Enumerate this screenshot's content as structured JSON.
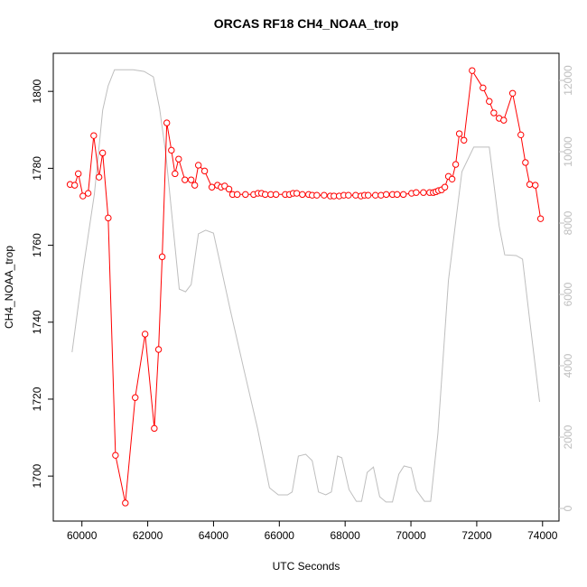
{
  "chart_data": {
    "type": "line",
    "title": "ORCAS RF18 CH4_NOAA_trop",
    "x_label": "UTC Seconds",
    "y_label": "CH4_NOAA_trop",
    "xlim": [
      59130,
      74500
    ],
    "ylim": [
      1688.3,
      1809.9
    ],
    "y2lim": [
      -354,
      12760
    ],
    "xticks": [
      60000,
      62000,
      64000,
      66000,
      68000,
      70000,
      72000,
      74000
    ],
    "yticks": [
      1700,
      1720,
      1740,
      1760,
      1780,
      1800
    ],
    "y2ticks": [
      0,
      2000,
      4000,
      6000,
      8000,
      10000,
      12000
    ],
    "y2_color": "#bebebe",
    "series": [
      {
        "color": "#ff0000",
        "markers": true,
        "x": [
          59640,
          59780,
          59890,
          60030,
          60190,
          60360,
          60520,
          60630,
          60800,
          61020,
          61320,
          61620,
          61920,
          62200,
          62330,
          62440,
          62580,
          62720,
          62830,
          62940,
          63130,
          63320,
          63430,
          63540,
          63730,
          63950,
          64120,
          64230,
          64340,
          64470,
          64580,
          64720,
          64970,
          65220,
          65350,
          65460,
          65570,
          65740,
          65900,
          66180,
          66310,
          66420,
          66530,
          66700,
          66890,
          67000,
          67140,
          67360,
          67550,
          67660,
          67820,
          67960,
          68100,
          68320,
          68480,
          68590,
          68700,
          68920,
          69090,
          69250,
          69440,
          69580,
          69770,
          70020,
          70160,
          70380,
          70570,
          70680,
          70760,
          70840,
          70930,
          71030,
          71140,
          71250,
          71360,
          71470,
          71610,
          71860,
          72190,
          72380,
          72520,
          72680,
          72820,
          73090,
          73340,
          73480,
          73610,
          73780,
          73940
        ],
        "values": [
          1775.8,
          1775.6,
          1778.6,
          1772.8,
          1773.5,
          1788.5,
          1777.7,
          1784.0,
          1767.1,
          1705.4,
          1693.0,
          1720.4,
          1736.9,
          1712.4,
          1732.9,
          1757.0,
          1791.8,
          1784.7,
          1778.6,
          1782.4,
          1777.0,
          1777.0,
          1775.6,
          1780.8,
          1779.3,
          1775.1,
          1775.6,
          1775.1,
          1775.4,
          1774.6,
          1773.2,
          1773.2,
          1773.2,
          1773.2,
          1773.5,
          1773.5,
          1773.2,
          1773.2,
          1773.2,
          1773.2,
          1773.2,
          1773.5,
          1773.5,
          1773.2,
          1773.2,
          1773.0,
          1773.0,
          1773.0,
          1772.8,
          1772.8,
          1772.8,
          1773.0,
          1773.0,
          1773.0,
          1772.8,
          1773.0,
          1773.0,
          1773.0,
          1773.0,
          1773.2,
          1773.2,
          1773.2,
          1773.2,
          1773.5,
          1773.7,
          1773.7,
          1773.7,
          1773.7,
          1773.9,
          1774.2,
          1774.4,
          1775.1,
          1777.9,
          1777.2,
          1781.0,
          1789.0,
          1787.3,
          1805.4,
          1800.9,
          1797.4,
          1794.4,
          1793.0,
          1792.5,
          1799.5,
          1788.7,
          1781.5,
          1775.8,
          1775.6,
          1766.9
        ]
      },
      {
        "color": "#bebebe",
        "markers": false,
        "axis": "y2",
        "x": [
          59700,
          60030,
          60380,
          60630,
          60800,
          60990,
          61560,
          61890,
          62170,
          62360,
          62550,
          62740,
          62960,
          63150,
          63320,
          63540,
          63760,
          64000,
          64160,
          64520,
          64930,
          65340,
          65700,
          65970,
          66250,
          66390,
          66580,
          66800,
          67000,
          67190,
          67410,
          67580,
          67770,
          67900,
          68120,
          68340,
          68500,
          68670,
          68860,
          69050,
          69240,
          69440,
          69630,
          69790,
          70010,
          70170,
          70410,
          70600,
          70820,
          71140,
          71550,
          71910,
          72380,
          72680,
          72850,
          73200,
          73390,
          73610,
          73910
        ],
        "values": [
          4380,
          6660,
          8810,
          11165,
          11850,
          12300,
          12300,
          12250,
          12100,
          11215,
          9950,
          8180,
          6150,
          6075,
          6280,
          7700,
          7800,
          7720,
          7040,
          5520,
          3870,
          2230,
          580,
          380,
          380,
          460,
          1470,
          1520,
          1340,
          460,
          380,
          460,
          1470,
          1420,
          530,
          200,
          200,
          1010,
          1160,
          330,
          180,
          180,
          960,
          1190,
          1140,
          510,
          200,
          200,
          2100,
          6400,
          9440,
          10130,
          10130,
          7920,
          7110,
          7090,
          6990,
          5270,
          2990
        ]
      }
    ]
  }
}
